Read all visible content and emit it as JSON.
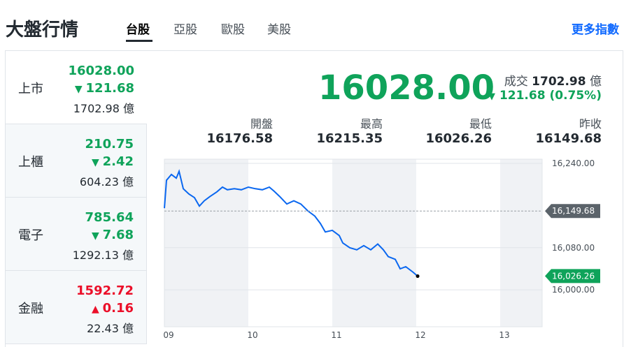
{
  "header": {
    "title": "大盤行情",
    "tabs": [
      "台股",
      "亞股",
      "歐股",
      "美股"
    ],
    "more": "更多指數"
  },
  "markets": [
    {
      "name": "上市",
      "price": "16028.00",
      "change": "121.68",
      "volume": "1702.98",
      "unit": "億",
      "direction": "down"
    },
    {
      "name": "上櫃",
      "price": "210.75",
      "change": "2.42",
      "volume": "604.23",
      "unit": "億",
      "direction": "down"
    },
    {
      "name": "電子",
      "price": "785.64",
      "change": "7.68",
      "volume": "1292.13",
      "unit": "億",
      "direction": "down"
    },
    {
      "name": "金融",
      "price": "1592.72",
      "change": "0.16",
      "volume": "22.43",
      "unit": "億",
      "direction": "up"
    }
  ],
  "quote": {
    "price": "16028.00",
    "volume_label": "成交",
    "volume": "1702.98",
    "unit": "億",
    "change": "121.68",
    "percent": "(0.75%)",
    "stats": [
      {
        "label": "開盤",
        "value": "16176.58"
      },
      {
        "label": "最高",
        "value": "16215.35"
      },
      {
        "label": "最低",
        "value": "16026.26"
      },
      {
        "label": "昨收",
        "value": "16149.68"
      }
    ]
  },
  "chart_data": {
    "type": "line",
    "x": [
      9,
      9.025,
      9.083,
      9.142,
      9.175,
      9.225,
      9.292,
      9.358,
      9.417,
      9.475,
      9.542,
      9.625,
      9.692,
      9.75,
      9.833,
      9.917,
      10,
      10.083,
      10.167,
      10.25,
      10.308,
      10.375,
      10.458,
      10.542,
      10.625,
      10.708,
      10.792,
      10.858,
      10.917,
      11,
      11.083,
      11.125,
      11.208,
      11.292,
      11.375,
      11.458,
      11.542,
      11.608,
      11.667,
      11.75,
      11.808,
      11.875,
      11.958,
      12.017
    ],
    "values": [
      16155,
      16208,
      16219,
      16212,
      16225,
      16192,
      16182,
      16175,
      16159,
      16169,
      16177,
      16186,
      16195,
      16190,
      16192,
      16190,
      16195,
      16192,
      16190,
      16195,
      16187,
      16177,
      16163,
      16169,
      16163,
      16150,
      16140,
      16126,
      16110,
      16113,
      16103,
      16089,
      16080,
      16076,
      16084,
      16076,
      16087,
      16076,
      16063,
      16058,
      16040,
      16044,
      16034,
      16026
    ],
    "color": "#0a67f0",
    "xlim": [
      9,
      13.5
    ],
    "xticks": [
      {
        "value": 9,
        "label": "09"
      },
      10,
      11,
      12,
      13
    ],
    "ylim": [
      15930,
      16248
    ],
    "yticks": [
      {
        "value": 16000,
        "label": "16,000.00"
      },
      {
        "value": 16080,
        "label": "16,080.00"
      },
      {
        "value": 16240,
        "label": "16,240.00"
      }
    ],
    "grid": true,
    "reference_lines": [
      {
        "value": 16149.68,
        "label": "16,149.68",
        "color": "#5b636a",
        "dashed": true
      },
      {
        "value": 16026.26,
        "label": "16,026.26",
        "color": "#0fa35a",
        "dashed": false
      }
    ]
  }
}
